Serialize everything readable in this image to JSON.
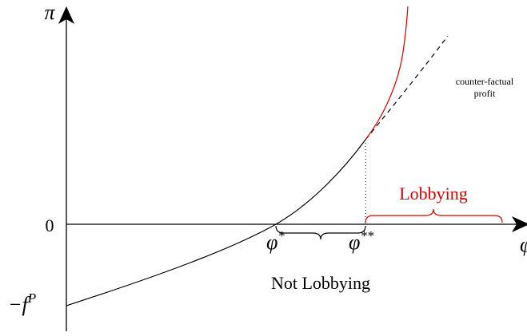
{
  "axes": {
    "y_label": "π",
    "x_label": "φ",
    "zero": "0",
    "intercept": {
      "text": "−f",
      "sup": "P"
    }
  },
  "thresholds": [
    {
      "text": "φ",
      "sup": "*"
    },
    {
      "text": "φ",
      "sup": "**"
    }
  ],
  "regions": {
    "not_lobbying": "Not Lobbying",
    "lobbying": "Lobbying"
  },
  "annotation": [
    "counter-factual",
    "profit"
  ]
}
